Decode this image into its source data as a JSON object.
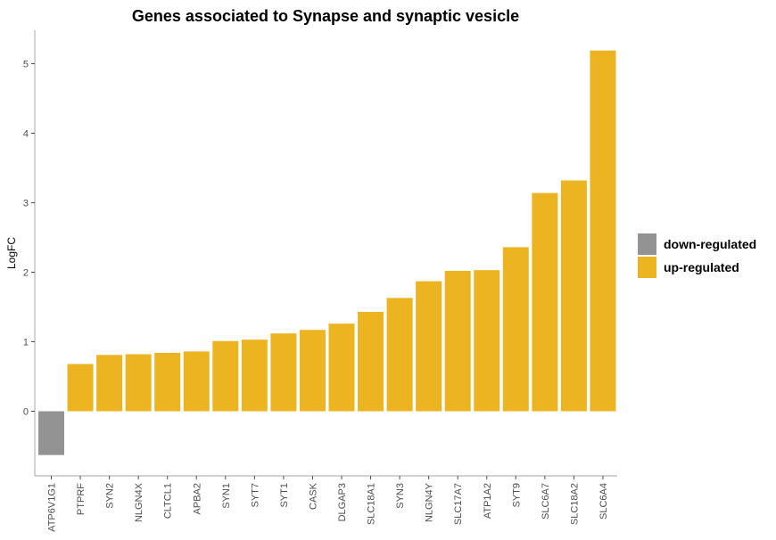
{
  "chart_data": {
    "type": "bar",
    "title": "Genes associated to Synapse and synaptic vesicle",
    "xlabel": "",
    "ylabel": "LogFC",
    "ylim": [
      -0.9,
      5.5
    ],
    "yticks": [
      0,
      1,
      2,
      3,
      4,
      5
    ],
    "grid": false,
    "legend_position": "right",
    "categories": [
      "ATP6V1G1",
      "PTPRF",
      "SYN2",
      "NLGN4X",
      "CLTCL1",
      "APBA2",
      "SYN1",
      "SYT7",
      "SYT1",
      "CASK",
      "DLGAP3",
      "SLC18A1",
      "SYN3",
      "NLGN4Y",
      "SLC17A7",
      "ATP1A2",
      "SYT9",
      "SLC6A7",
      "SLC18A2",
      "SLC6A4"
    ],
    "values": [
      -0.63,
      0.68,
      0.81,
      0.82,
      0.84,
      0.86,
      1.01,
      1.03,
      1.12,
      1.17,
      1.26,
      1.43,
      1.63,
      1.87,
      2.02,
      2.03,
      2.36,
      3.14,
      3.32,
      5.19
    ],
    "groups": [
      "down-regulated",
      "up-regulated",
      "up-regulated",
      "up-regulated",
      "up-regulated",
      "up-regulated",
      "up-regulated",
      "up-regulated",
      "up-regulated",
      "up-regulated",
      "up-regulated",
      "up-regulated",
      "up-regulated",
      "up-regulated",
      "up-regulated",
      "up-regulated",
      "up-regulated",
      "up-regulated",
      "up-regulated",
      "up-regulated"
    ],
    "legend": [
      {
        "label": "down-regulated",
        "color": "#939393"
      },
      {
        "label": "up-regulated",
        "color": "#EDB422"
      }
    ]
  }
}
